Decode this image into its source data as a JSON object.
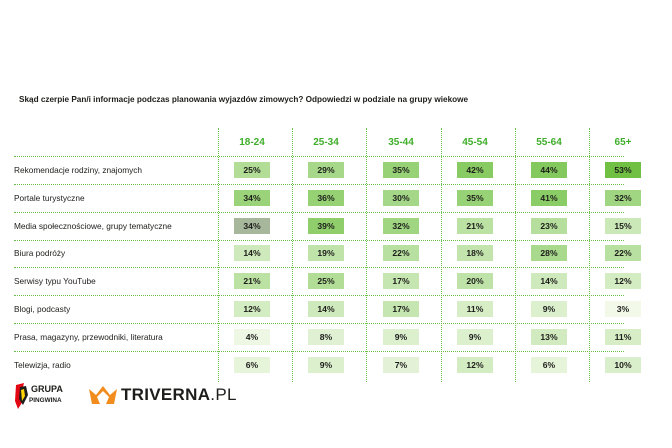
{
  "chart_data": {
    "type": "table",
    "title": "Skąd czerpie Pan/i informacje podczas planowania wyjazdów zimowych? Odpowiedzi w podziale na grupy wiekowe",
    "columns": [
      "18-24",
      "25-34",
      "35-44",
      "45-54",
      "55-64",
      "65+"
    ],
    "rows": [
      {
        "label": "Rekomendacje rodziny, znajomych",
        "values": [
          "25%",
          "29%",
          "35%",
          "42%",
          "44%",
          "53%"
        ],
        "numeric": [
          25,
          29,
          35,
          42,
          44,
          53
        ]
      },
      {
        "label": "Portale turystyczne",
        "values": [
          "34%",
          "36%",
          "30%",
          "35%",
          "41%",
          "32%"
        ],
        "numeric": [
          34,
          36,
          30,
          35,
          41,
          32
        ]
      },
      {
        "label": "Media społecznościowe, grupy tematyczne",
        "values": [
          "34%",
          "39%",
          "32%",
          "21%",
          "23%",
          "15%"
        ],
        "numeric": [
          34,
          39,
          32,
          21,
          23,
          15
        ]
      },
      {
        "label": "Biura podróży",
        "values": [
          "14%",
          "19%",
          "22%",
          "18%",
          "28%",
          "22%"
        ],
        "numeric": [
          14,
          19,
          22,
          18,
          28,
          22
        ]
      },
      {
        "label": "Serwisy typu YouTube",
        "values": [
          "21%",
          "25%",
          "17%",
          "20%",
          "14%",
          "12%"
        ],
        "numeric": [
          21,
          25,
          17,
          20,
          14,
          12
        ]
      },
      {
        "label": "Blogi, podcasty",
        "values": [
          "12%",
          "14%",
          "17%",
          "11%",
          "9%",
          "3%"
        ],
        "numeric": [
          12,
          14,
          17,
          11,
          9,
          3
        ]
      },
      {
        "label": "Prasa, magazyny, przewodniki, literatura",
        "values": [
          "4%",
          "8%",
          "9%",
          "9%",
          "13%",
          "11%"
        ],
        "numeric": [
          4,
          8,
          9,
          9,
          13,
          11
        ]
      },
      {
        "label": "Telewizja, radio",
        "values": [
          "6%",
          "9%",
          "7%",
          "12%",
          "6%",
          "10%"
        ],
        "numeric": [
          6,
          9,
          7,
          12,
          6,
          10
        ]
      }
    ],
    "highlight_cell": {
      "row": 2,
      "col": 0
    },
    "colors": {
      "max": "#6fc043",
      "min": "#f2f9e9",
      "highlight": "#a7b79b",
      "accent": "#3fae2a"
    }
  },
  "logos": {
    "grupa_line1": "GRUPA",
    "grupa_line2": "PINGWINA",
    "triverna_bold": "TRIVERNA",
    "triverna_suffix": ".PL"
  }
}
